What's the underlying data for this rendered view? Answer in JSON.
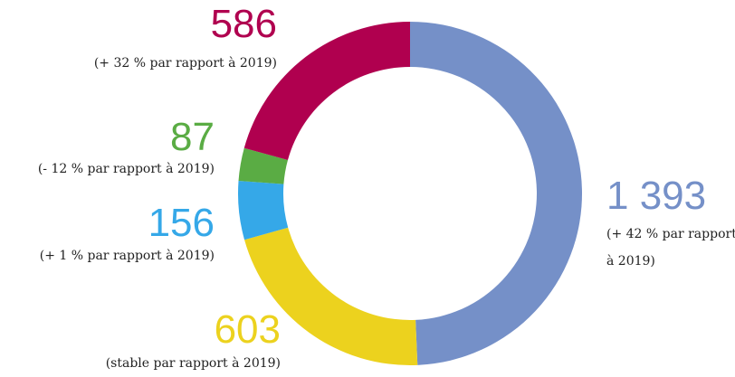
{
  "chart_data": {
    "type": "donut",
    "values": [
      1393,
      603,
      156,
      87,
      586
    ],
    "value_labels": [
      "1 393",
      "603",
      "156",
      "87",
      "586"
    ],
    "annotations": [
      "(+ 42 % par rapport à 2019)",
      "(stable par rapport à 2019)",
      "(+ 1 % par rapport à 2019)",
      "(- 12 % par rapport à 2019)",
      "(+ 32 % par rapport à 2019)"
    ],
    "colors": [
      "#7590c8",
      "#ecd21e",
      "#35a8e8",
      "#5aac44",
      "#b0004f"
    ]
  }
}
